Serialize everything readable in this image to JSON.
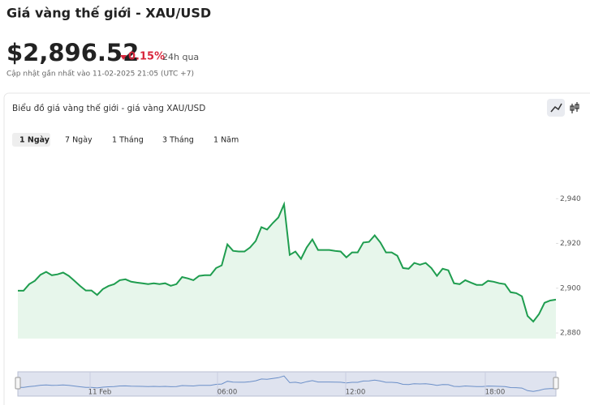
{
  "header": {
    "title": "Giá vàng thế giới - XAU/USD",
    "price": "$2,896.52",
    "change": "0.15%",
    "period": "24h qua",
    "updated": "Cập nhật gần nhất vào 11-02-2025 21:05 (UTC +7)"
  },
  "card": {
    "title": "Biểu đồ giá vàng thế giới - giá vàng XAU/USD",
    "tabs": [
      "1 Ngày",
      "7 Ngày",
      "1 Tháng",
      "3 Tháng",
      "1 Năm"
    ]
  },
  "chart_data": {
    "type": "area",
    "color": "#1f9d4f",
    "fill": "#e7f6eb",
    "values": [
      2898.9,
      2898.9,
      2901.8,
      2903.3,
      2906,
      2907.3,
      2905.8,
      2906.2,
      2907,
      2905.5,
      2903.3,
      2901,
      2899,
      2899,
      2897,
      2899.6,
      2901,
      2901.8,
      2903.6,
      2904,
      2902.9,
      2902.5,
      2902.2,
      2901.8,
      2902.2,
      2901.8,
      2902.2,
      2901.1,
      2901.8,
      2905,
      2904.4,
      2903.6,
      2905.5,
      2905.8,
      2905.8,
      2909,
      2910.2,
      2919.6,
      2916.7,
      2916.4,
      2916.4,
      2918.2,
      2921.1,
      2927.3,
      2926.2,
      2929.1,
      2931.6,
      2937.5,
      2914.9,
      2916.4,
      2913.1,
      2918.2,
      2921.8,
      2917.1,
      2917.1,
      2917.1,
      2916.7,
      2916.4,
      2913.8,
      2916,
      2916,
      2920.4,
      2920.7,
      2923.6,
      2920.4,
      2916,
      2916,
      2914.5,
      2909,
      2908.7,
      2911.3,
      2910.5,
      2911.3,
      2909,
      2905.5,
      2908.7,
      2908,
      2902.2,
      2901.8,
      2903.6,
      2902.5,
      2901.5,
      2901.5,
      2903.3,
      2902.9,
      2902.2,
      2901.8,
      2898.2,
      2897.8,
      2896.4,
      2887.6,
      2885.1,
      2888.4,
      2893.5,
      2894.5,
      2894.9
    ],
    "ylim": [
      2877.5,
      2960
    ],
    "yticks": [
      {
        "value": 2880,
        "label": "2,880"
      },
      {
        "value": 2900,
        "label": "2,900"
      },
      {
        "value": 2920,
        "label": "2,920"
      },
      {
        "value": 2940,
        "label": "2,940"
      }
    ],
    "navigator_labels": [
      "11 Feb",
      "06:00",
      "12:00",
      "18:00"
    ]
  }
}
